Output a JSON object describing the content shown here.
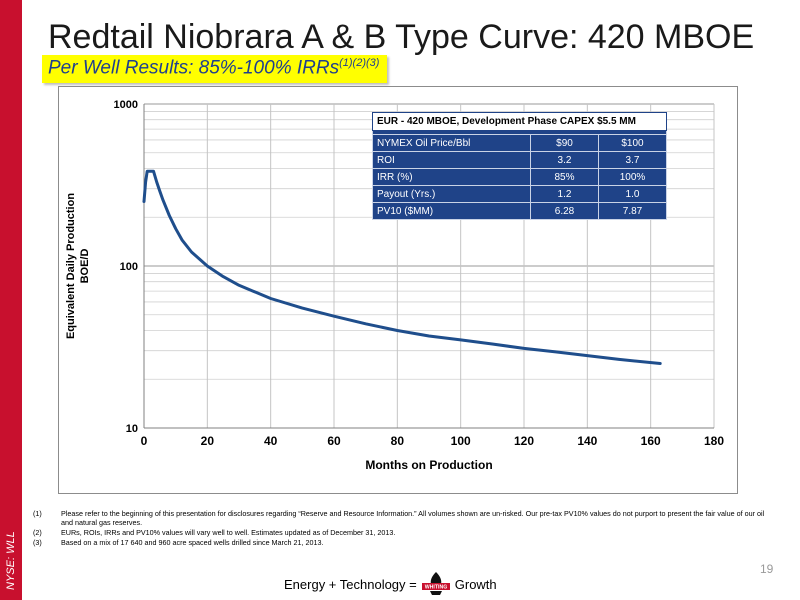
{
  "title": "Redtail Niobrara A & B Type Curve: 420 MBOE",
  "subtitle": {
    "text": "Per Well Results: 85%-100% IRRs",
    "sup": "(1)(2)(3)"
  },
  "side_label": "NYSE: WLL",
  "table": {
    "header": "EUR - 420 MBOE, Development Phase CAPEX $5.5 MM",
    "rows": [
      [
        "NYMEX Oil Price/Bbl",
        "$90",
        "$100"
      ],
      [
        "ROI",
        "3.2",
        "3.7"
      ],
      [
        "IRR (%)",
        "85%",
        "100%"
      ],
      [
        "Payout (Yrs.)",
        "1.2",
        "1.0"
      ],
      [
        "PV10 ($MM)",
        "6.28",
        "7.87"
      ]
    ]
  },
  "chart_data": {
    "type": "line",
    "title": "",
    "xlabel": "Months on Production",
    "ylabel": [
      "Equivalent Daily Production",
      "BOE/D"
    ],
    "xlim": [
      0,
      180
    ],
    "ylim": [
      10,
      1000
    ],
    "yscale": "log",
    "x_ticks": [
      0,
      20,
      40,
      60,
      80,
      100,
      120,
      140,
      160,
      180
    ],
    "y_ticks": [
      10,
      100,
      1000
    ],
    "grid": true,
    "series": [
      {
        "color": "#1f4e8c",
        "points": [
          [
            0,
            250
          ],
          [
            0.5,
            330
          ],
          [
            1,
            385
          ],
          [
            2,
            385
          ],
          [
            3,
            385
          ],
          [
            4,
            330
          ],
          [
            5,
            290
          ],
          [
            6,
            255
          ],
          [
            8,
            205
          ],
          [
            10,
            170
          ],
          [
            12,
            145
          ],
          [
            15,
            122
          ],
          [
            20,
            100
          ],
          [
            25,
            86
          ],
          [
            30,
            76
          ],
          [
            40,
            63
          ],
          [
            50,
            55
          ],
          [
            60,
            49
          ],
          [
            70,
            44
          ],
          [
            80,
            40
          ],
          [
            90,
            37
          ],
          [
            100,
            35
          ],
          [
            110,
            33
          ],
          [
            120,
            31
          ],
          [
            130,
            29.5
          ],
          [
            140,
            28
          ],
          [
            150,
            26.5
          ],
          [
            163,
            25
          ]
        ]
      }
    ]
  },
  "footnotes": [
    {
      "num": "(1)",
      "text": "Please refer to the beginning of this presentation for disclosures regarding “Reserve and Resource Information.”  All volumes shown are un-risked.  Our pre-tax PV10% values do not purport to present the fair value of our oil and natural gas reserves."
    },
    {
      "num": "(2)",
      "text": "EURs, ROIs, IRRs and PV10% values will vary well to well.  Estimates updated as of December 31, 2013."
    },
    {
      "num": "(3)",
      "text": "Based on a mix of 17 640 and 960 acre spaced wells drilled since March 21, 2013."
    }
  ],
  "tagline": {
    "left": "Energy + Technology =",
    "logo_text": "WHITING",
    "right": "Growth"
  },
  "page_number": "19"
}
